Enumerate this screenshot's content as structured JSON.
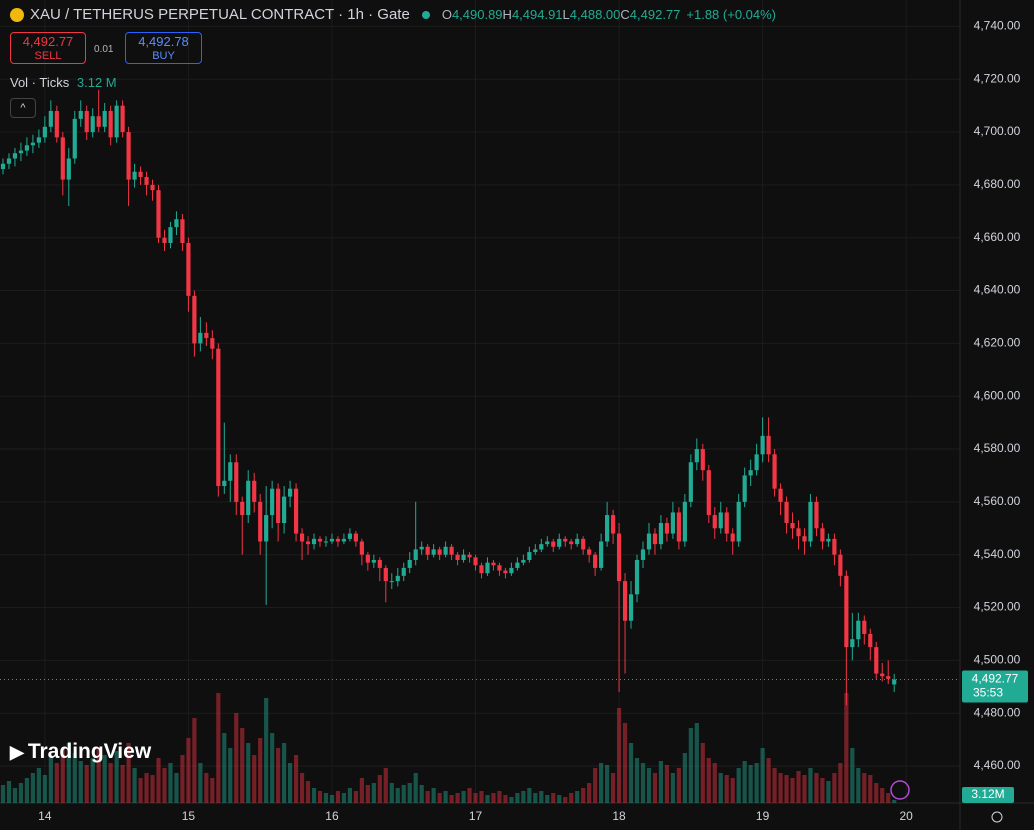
{
  "chart_data": {
    "type": "candlestick",
    "title": "XAU / TETHERUS PERPETUAL CONTRACT · 1h · Gate",
    "ohlc_legend": [
      {
        "key": "O",
        "value": "4,490.89"
      },
      {
        "key": "H",
        "value": "4,494.91"
      },
      {
        "key": "L",
        "value": "4,488.00"
      },
      {
        "key": "C",
        "value": "4,492.77"
      }
    ],
    "change": "+1.88 (+0.04%)",
    "sell": {
      "price": "4,492.77",
      "label": "SELL"
    },
    "spread": "0.01",
    "buy": {
      "price": "4,492.78",
      "label": "BUY"
    },
    "volume_legend": {
      "label": "Vol · Ticks",
      "value": "3.12 M"
    },
    "last_price_label": "4,492.77",
    "countdown": "35:53",
    "last_volume_label": "3.12M",
    "watermark": "TradingView",
    "up_color": "#22ab94",
    "down_color": "#f23645",
    "xlim": [
      -0.5,
      160
    ],
    "xticks": [
      {
        "value": 7,
        "label": "14"
      },
      {
        "value": 31,
        "label": "15"
      },
      {
        "value": 55,
        "label": "16"
      },
      {
        "value": 79,
        "label": "17"
      },
      {
        "value": 103,
        "label": "18"
      },
      {
        "value": 127,
        "label": "19"
      },
      {
        "value": 151,
        "label": "20"
      }
    ],
    "ylim": [
      4446,
      4750
    ],
    "yticks": [
      {
        "value": 4460,
        "label": "4,460.00"
      },
      {
        "value": 4480,
        "label": "4,480.00"
      },
      {
        "value": 4500,
        "label": "4,500.00"
      },
      {
        "value": 4520,
        "label": "4,520.00"
      },
      {
        "value": 4540,
        "label": "4,540.00"
      },
      {
        "value": 4560,
        "label": "4,560.00"
      },
      {
        "value": 4580,
        "label": "4,580.00"
      },
      {
        "value": 4600,
        "label": "4,600.00"
      },
      {
        "value": 4620,
        "label": "4,620.00"
      },
      {
        "value": 4640,
        "label": "4,640.00"
      },
      {
        "value": 4660,
        "label": "4,660.00"
      },
      {
        "value": 4680,
        "label": "4,680.00"
      },
      {
        "value": 4700,
        "label": "4,700.00"
      },
      {
        "value": 4720,
        "label": "4,720.00"
      },
      {
        "value": 4740,
        "label": "4,740.00"
      }
    ],
    "grid": true,
    "ohlc": [
      [
        4686,
        4690,
        4684,
        4688
      ],
      [
        4688,
        4692,
        4686,
        4690
      ],
      [
        4690,
        4694,
        4687,
        4692
      ],
      [
        4692,
        4696,
        4689,
        4693
      ],
      [
        4693,
        4698,
        4691,
        4695
      ],
      [
        4695,
        4699,
        4692,
        4696
      ],
      [
        4696,
        4701,
        4694,
        4698
      ],
      [
        4698,
        4706,
        4696,
        4702
      ],
      [
        4702,
        4712,
        4700,
        4708
      ],
      [
        4708,
        4710,
        4696,
        4698
      ],
      [
        4698,
        4700,
        4676,
        4682
      ],
      [
        4682,
        4694,
        4672,
        4690
      ],
      [
        4690,
        4708,
        4688,
        4705
      ],
      [
        4705,
        4712,
        4702,
        4708
      ],
      [
        4708,
        4710,
        4697,
        4700
      ],
      [
        4700,
        4709,
        4698,
        4706
      ],
      [
        4706,
        4716,
        4700,
        4702
      ],
      [
        4702,
        4711,
        4700,
        4708
      ],
      [
        4708,
        4710,
        4695,
        4698
      ],
      [
        4698,
        4712,
        4696,
        4710
      ],
      [
        4710,
        4712,
        4698,
        4700
      ],
      [
        4700,
        4702,
        4672,
        4682
      ],
      [
        4682,
        4688,
        4679,
        4685
      ],
      [
        4685,
        4687,
        4680,
        4683
      ],
      [
        4683,
        4685,
        4676,
        4680
      ],
      [
        4680,
        4682,
        4674,
        4678
      ],
      [
        4678,
        4680,
        4658,
        4660
      ],
      [
        4660,
        4663,
        4655,
        4658
      ],
      [
        4658,
        4666,
        4656,
        4664
      ],
      [
        4664,
        4670,
        4661,
        4667
      ],
      [
        4667,
        4669,
        4655,
        4658
      ],
      [
        4658,
        4660,
        4632,
        4638
      ],
      [
        4638,
        4640,
        4615,
        4620
      ],
      [
        4620,
        4630,
        4617,
        4624
      ],
      [
        4624,
        4628,
        4619,
        4622
      ],
      [
        4622,
        4625,
        4614,
        4618
      ],
      [
        4618,
        4620,
        4562,
        4566
      ],
      [
        4566,
        4590,
        4563,
        4568
      ],
      [
        4568,
        4578,
        4560,
        4575
      ],
      [
        4575,
        4578,
        4555,
        4560
      ],
      [
        4560,
        4562,
        4540,
        4555
      ],
      [
        4555,
        4572,
        4552,
        4568
      ],
      [
        4568,
        4571,
        4556,
        4560
      ],
      [
        4560,
        4563,
        4540,
        4545
      ],
      [
        4545,
        4566,
        4521,
        4555
      ],
      [
        4555,
        4568,
        4550,
        4565
      ],
      [
        4565,
        4567,
        4545,
        4552
      ],
      [
        4552,
        4566,
        4548,
        4562
      ],
      [
        4562,
        4568,
        4558,
        4565
      ],
      [
        4565,
        4567,
        4545,
        4548
      ],
      [
        4548,
        4550,
        4538,
        4545
      ],
      [
        4545,
        4547,
        4540,
        4544
      ],
      [
        4544,
        4548,
        4542,
        4546
      ],
      [
        4546,
        4547,
        4543,
        4545
      ],
      [
        4545,
        4547,
        4543,
        4545
      ],
      [
        4545,
        4548,
        4544,
        4546
      ],
      [
        4546,
        4547,
        4543,
        4545
      ],
      [
        4545,
        4548,
        4544,
        4546
      ],
      [
        4546,
        4550,
        4545,
        4548
      ],
      [
        4548,
        4549,
        4543,
        4545
      ],
      [
        4545,
        4546,
        4536,
        4540
      ],
      [
        4540,
        4541,
        4534,
        4537
      ],
      [
        4537,
        4540,
        4535,
        4538
      ],
      [
        4538,
        4539,
        4530,
        4535
      ],
      [
        4535,
        4536,
        4522,
        4530
      ],
      [
        4530,
        4533,
        4527,
        4530
      ],
      [
        4530,
        4535,
        4528,
        4532
      ],
      [
        4532,
        4537,
        4530,
        4535
      ],
      [
        4535,
        4541,
        4533,
        4538
      ],
      [
        4538,
        4560,
        4536,
        4542
      ],
      [
        4542,
        4545,
        4540,
        4543
      ],
      [
        4543,
        4544,
        4538,
        4540
      ],
      [
        4540,
        4544,
        4539,
        4542
      ],
      [
        4542,
        4543,
        4538,
        4540
      ],
      [
        4540,
        4545,
        4539,
        4543
      ],
      [
        4543,
        4544,
        4538,
        4540
      ],
      [
        4540,
        4541,
        4536,
        4538
      ],
      [
        4538,
        4542,
        4537,
        4540
      ],
      [
        4540,
        4541,
        4537,
        4539
      ],
      [
        4539,
        4540,
        4534,
        4536
      ],
      [
        4536,
        4537,
        4531,
        4533
      ],
      [
        4533,
        4539,
        4532,
        4537
      ],
      [
        4537,
        4538,
        4534,
        4536
      ],
      [
        4536,
        4537,
        4532,
        4534
      ],
      [
        4534,
        4535,
        4531,
        4533
      ],
      [
        4533,
        4537,
        4532,
        4535
      ],
      [
        4535,
        4539,
        4534,
        4537
      ],
      [
        4537,
        4540,
        4536,
        4538
      ],
      [
        4538,
        4543,
        4537,
        4541
      ],
      [
        4541,
        4544,
        4540,
        4542
      ],
      [
        4542,
        4546,
        4541,
        4544
      ],
      [
        4544,
        4547,
        4543,
        4545
      ],
      [
        4545,
        4546,
        4541,
        4543
      ],
      [
        4543,
        4548,
        4542,
        4546
      ],
      [
        4546,
        4547,
        4543,
        4545
      ],
      [
        4545,
        4546,
        4542,
        4544
      ],
      [
        4544,
        4548,
        4543,
        4546
      ],
      [
        4546,
        4547,
        4540,
        4542
      ],
      [
        4542,
        4543,
        4537,
        4540
      ],
      [
        4540,
        4541,
        4532,
        4535
      ],
      [
        4535,
        4548,
        4534,
        4545
      ],
      [
        4545,
        4560,
        4543,
        4555
      ],
      [
        4555,
        4557,
        4544,
        4548
      ],
      [
        4548,
        4552,
        4488,
        4530
      ],
      [
        4530,
        4533,
        4495,
        4515
      ],
      [
        4515,
        4530,
        4512,
        4525
      ],
      [
        4525,
        4540,
        4522,
        4538
      ],
      [
        4538,
        4545,
        4535,
        4542
      ],
      [
        4542,
        4552,
        4540,
        4548
      ],
      [
        4548,
        4550,
        4540,
        4544
      ],
      [
        4544,
        4555,
        4542,
        4552
      ],
      [
        4552,
        4554,
        4545,
        4548
      ],
      [
        4548,
        4560,
        4546,
        4556
      ],
      [
        4556,
        4558,
        4542,
        4545
      ],
      [
        4545,
        4563,
        4543,
        4560
      ],
      [
        4560,
        4578,
        4558,
        4575
      ],
      [
        4575,
        4584,
        4572,
        4580
      ],
      [
        4580,
        4582,
        4568,
        4572
      ],
      [
        4572,
        4574,
        4552,
        4555
      ],
      [
        4555,
        4558,
        4546,
        4550
      ],
      [
        4550,
        4560,
        4548,
        4556
      ],
      [
        4556,
        4558,
        4545,
        4548
      ],
      [
        4548,
        4550,
        4540,
        4545
      ],
      [
        4545,
        4563,
        4543,
        4560
      ],
      [
        4560,
        4573,
        4558,
        4570
      ],
      [
        4570,
        4576,
        4566,
        4572
      ],
      [
        4572,
        4582,
        4570,
        4578
      ],
      [
        4578,
        4592,
        4575,
        4585
      ],
      [
        4585,
        4592,
        4575,
        4578
      ],
      [
        4578,
        4580,
        4562,
        4565
      ],
      [
        4565,
        4567,
        4555,
        4560
      ],
      [
        4560,
        4562,
        4548,
        4552
      ],
      [
        4552,
        4556,
        4546,
        4550
      ],
      [
        4550,
        4553,
        4542,
        4547
      ],
      [
        4547,
        4550,
        4540,
        4545
      ],
      [
        4545,
        4563,
        4543,
        4560
      ],
      [
        4560,
        4562,
        4547,
        4550
      ],
      [
        4550,
        4552,
        4542,
        4545
      ],
      [
        4545,
        4548,
        4543,
        4546
      ],
      [
        4546,
        4548,
        4536,
        4540
      ],
      [
        4540,
        4542,
        4528,
        4532
      ],
      [
        4532,
        4534,
        4483,
        4505
      ],
      [
        4505,
        4518,
        4500,
        4508
      ],
      [
        4508,
        4518,
        4505,
        4515
      ],
      [
        4515,
        4517,
        4506,
        4510
      ],
      [
        4510,
        4512,
        4500,
        4505
      ],
      [
        4505,
        4507,
        4493,
        4495
      ],
      [
        4495,
        4499,
        4492,
        4494
      ],
      [
        4494,
        4500,
        4491,
        4493
      ],
      [
        4490.89,
        4494.91,
        4488,
        4492.77
      ]
    ],
    "volume": [
      18,
      22,
      15,
      20,
      25,
      30,
      35,
      28,
      45,
      40,
      55,
      60,
      50,
      42,
      38,
      45,
      55,
      48,
      40,
      52,
      38,
      60,
      35,
      25,
      30,
      28,
      45,
      35,
      40,
      30,
      48,
      65,
      85,
      40,
      30,
      25,
      110,
      70,
      55,
      90,
      75,
      60,
      48,
      65,
      105,
      70,
      55,
      60,
      40,
      48,
      30,
      22,
      15,
      12,
      10,
      8,
      12,
      10,
      15,
      12,
      25,
      18,
      20,
      28,
      35,
      20,
      15,
      18,
      20,
      30,
      18,
      12,
      15,
      10,
      12,
      8,
      10,
      12,
      15,
      10,
      12,
      8,
      10,
      12,
      8,
      6,
      10,
      12,
      15,
      10,
      12,
      8,
      10,
      8,
      6,
      10,
      12,
      15,
      20,
      35,
      40,
      38,
      30,
      95,
      80,
      60,
      45,
      40,
      35,
      30,
      42,
      38,
      30,
      35,
      50,
      75,
      80,
      60,
      45,
      40,
      30,
      28,
      25,
      35,
      42,
      38,
      40,
      55,
      45,
      35,
      30,
      28,
      25,
      32,
      28,
      35,
      30,
      25,
      22,
      30,
      40,
      110,
      55,
      35,
      30,
      28,
      20,
      15,
      10,
      3.12
    ]
  }
}
